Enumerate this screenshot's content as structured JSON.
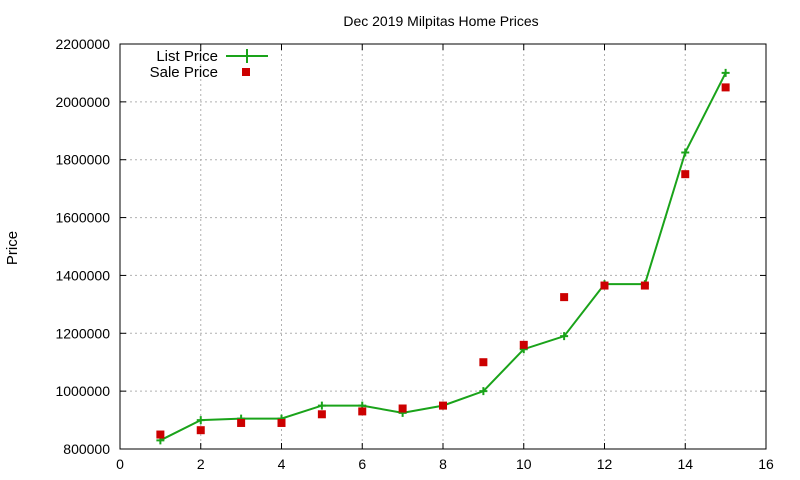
{
  "chart_data": {
    "type": "line",
    "title": "Dec 2019 Milpitas Home Prices",
    "xlabel": "",
    "ylabel": "Price",
    "xlim": [
      0,
      16
    ],
    "ylim": [
      800000,
      2200000
    ],
    "xticks": [
      0,
      2,
      4,
      6,
      8,
      10,
      12,
      14,
      16
    ],
    "yticks": [
      800000,
      1000000,
      1200000,
      1400000,
      1600000,
      1800000,
      2000000,
      2200000
    ],
    "xtick_labels": [
      "0",
      "2",
      "4",
      "6",
      "8",
      "10",
      "12",
      "14",
      "16"
    ],
    "ytick_labels": [
      "800000",
      "1000000",
      "1200000",
      "1400000",
      "1600000",
      "1800000",
      "2000000",
      "2200000"
    ],
    "grid": true,
    "legend_position": "top-left",
    "series": [
      {
        "name": "List Price",
        "style": "line-plus",
        "color": "#1aa31a",
        "x": [
          1,
          2,
          3,
          4,
          5,
          6,
          7,
          8,
          9,
          10,
          11,
          12,
          13,
          14,
          15
        ],
        "y": [
          830000,
          900000,
          905000,
          905000,
          950000,
          950000,
          925000,
          950000,
          1000000,
          1145000,
          1190000,
          1370000,
          1370000,
          1825000,
          2100000
        ]
      },
      {
        "name": "Sale Price",
        "style": "square-points",
        "color": "#cc0000",
        "x": [
          1,
          2,
          3,
          4,
          5,
          6,
          7,
          8,
          9,
          10,
          11,
          12,
          13,
          14,
          15
        ],
        "y": [
          850000,
          865000,
          890000,
          890000,
          920000,
          930000,
          940000,
          950000,
          1100000,
          1160000,
          1325000,
          1365000,
          1365000,
          1750000,
          2050000
        ]
      }
    ]
  }
}
